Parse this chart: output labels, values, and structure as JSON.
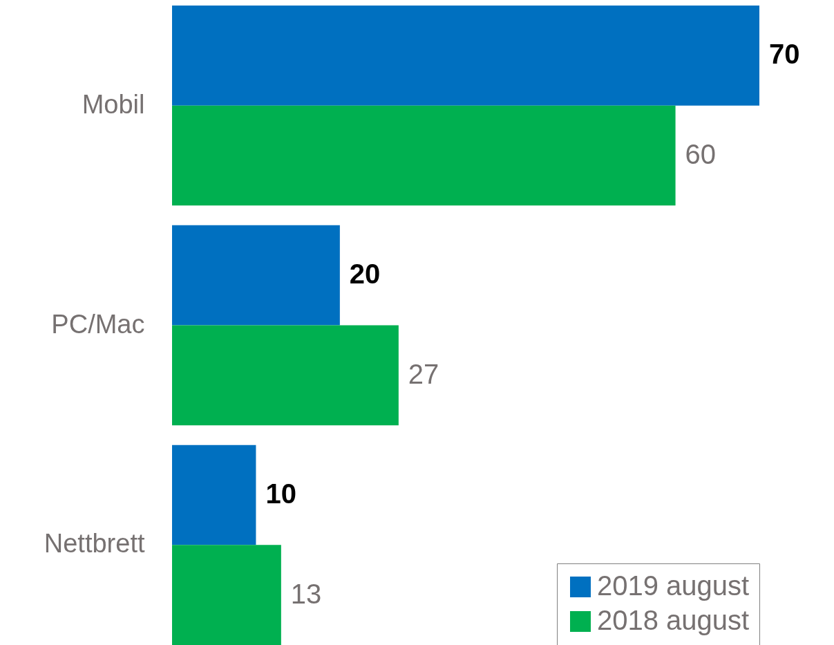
{
  "chart_data": {
    "type": "bar",
    "orientation": "horizontal",
    "categories": [
      "Mobil",
      "PC/Mac",
      "Nettbrett"
    ],
    "series": [
      {
        "name": "2019 august",
        "color": "#0070c0",
        "values": [
          70,
          20,
          10
        ]
      },
      {
        "name": "2018 august",
        "color": "#00b050",
        "values": [
          60,
          27,
          13
        ]
      }
    ],
    "data_labels": true,
    "legend": "bottom right",
    "grid": false
  }
}
